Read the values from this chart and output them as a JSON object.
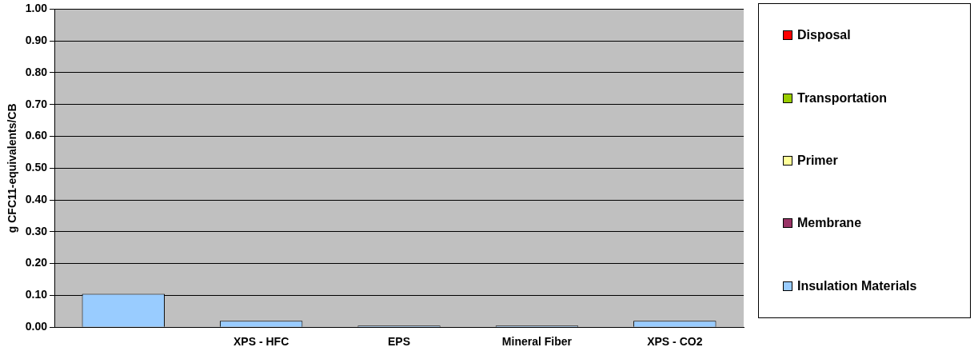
{
  "chart_data": {
    "type": "bar",
    "stacked": true,
    "ylabel": "g CFC11-equivalents/CB",
    "categories": [
      null,
      "XPS - HFC",
      "EPS",
      "Mineral Fiber",
      "XPS - CO2"
    ],
    "series": [
      {
        "name": "Insulation Materials",
        "color": "#99ccff",
        "values": [
          0.105,
          0.02,
          0.005,
          0.005,
          0.02
        ]
      },
      {
        "name": "Membrane",
        "color": "#993366",
        "values": [
          0,
          0,
          0,
          0,
          0
        ]
      },
      {
        "name": "Primer",
        "color": "#ffff99",
        "values": [
          0,
          0,
          0,
          0,
          0
        ]
      },
      {
        "name": "Transportation",
        "color": "#99cc00",
        "values": [
          0,
          0,
          0,
          0,
          0
        ]
      },
      {
        "name": "Disposal",
        "color": "#ff0000",
        "values": [
          0,
          0,
          0,
          0,
          0
        ]
      }
    ],
    "ylim": [
      0,
      1
    ],
    "yticks": [
      {
        "value": 0,
        "label": "0.00"
      },
      {
        "value": 0.1,
        "label": "0.10"
      },
      {
        "value": 0.2,
        "label": "0.20"
      },
      {
        "value": 0.3,
        "label": "0.30"
      },
      {
        "value": 0.4,
        "label": "0.40"
      },
      {
        "value": 0.5,
        "label": "0.50"
      },
      {
        "value": 0.6,
        "label": "0.60"
      },
      {
        "value": 0.7,
        "label": "0.70"
      },
      {
        "value": 0.8,
        "label": "0.80"
      },
      {
        "value": 0.9,
        "label": "0.90"
      },
      {
        "value": 1,
        "label": "1.00"
      }
    ],
    "grid": "y",
    "legend": "right"
  }
}
